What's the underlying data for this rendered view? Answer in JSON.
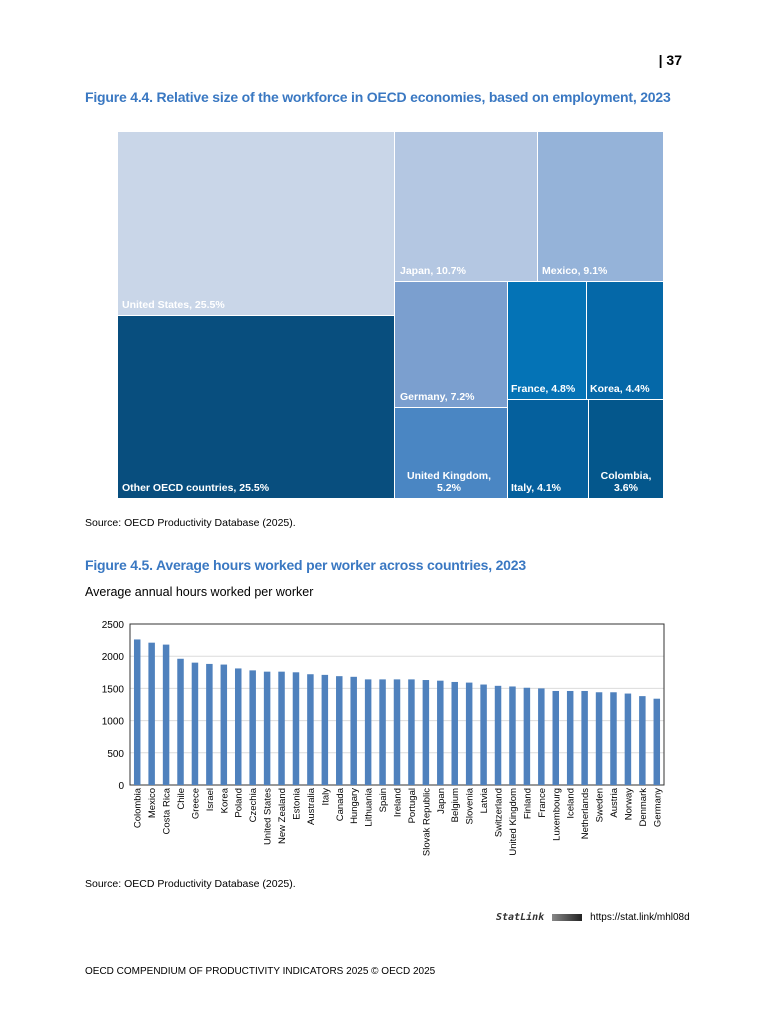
{
  "page_number": "| 37",
  "figure_4_4": {
    "title": "Figure 4.4. Relative size of the workforce in OECD economies, based on employment, 2023",
    "source": "Source: OECD Productivity Database (2025).",
    "cells": [
      {
        "label": "United States, 25.5%",
        "value": 25.5,
        "color": "#c9d6e8"
      },
      {
        "label": "Other OECD countries, 25.5%",
        "value": 25.5,
        "color": "#084e7e"
      },
      {
        "label": "Japan, 10.7%",
        "value": 10.7,
        "color": "#b4c7e2"
      },
      {
        "label": "Mexico, 9.1%",
        "value": 9.1,
        "color": "#95b3d9"
      },
      {
        "label": "Germany, 7.2%",
        "value": 7.2,
        "color": "#7b9fcf"
      },
      {
        "label": "United Kingdom, 5.2%",
        "value": 5.2,
        "color": "#4a86c3"
      },
      {
        "label": "France, 4.8%",
        "value": 4.8,
        "color": "#0473b6"
      },
      {
        "label": "Korea, 4.4%",
        "value": 4.4,
        "color": "#0568a8"
      },
      {
        "label": "Italy, 4.1%",
        "value": 4.1,
        "color": "#05609d"
      },
      {
        "label": "Colombia, 3.6%",
        "value": 3.6,
        "color": "#04578c"
      }
    ]
  },
  "figure_4_5": {
    "title": "Figure 4.5. Average hours worked per worker across countries, 2023",
    "subtitle": "Average annual hours worked per worker",
    "source": "Source: OECD Productivity Database (2025).",
    "statlink_logo": "StatLink",
    "statlink_url": "https://stat.link/mhl08d"
  },
  "chart_data": {
    "type": "bar",
    "title": "Figure 4.5. Average hours worked per worker across countries, 2023",
    "ylabel": "Average annual hours worked per worker",
    "ylim": [
      0,
      2500
    ],
    "yticks": [
      "0",
      "500",
      "1000",
      "1500",
      "2000",
      "2500"
    ],
    "grid": true,
    "color": "#4f81bd",
    "categories": [
      "Colombia",
      "Mexico",
      "Costa Rica",
      "Chile",
      "Greece",
      "Israel",
      "Korea",
      "Poland",
      "Czechia",
      "United States",
      "New Zealand",
      "Estonia",
      "Australia",
      "Italy",
      "Canada",
      "Hungary",
      "Lithuania",
      "Spain",
      "Ireland",
      "Portugal",
      "Slovak Republic",
      "Japan",
      "Belgium",
      "Slovenia",
      "Latvia",
      "Switzerland",
      "United Kingdom",
      "Finland",
      "France",
      "Luxembourg",
      "Iceland",
      "Netherlands",
      "Sweden",
      "Austria",
      "Norway",
      "Denmark",
      "Germany"
    ],
    "values": [
      2260,
      2210,
      2180,
      1960,
      1900,
      1880,
      1870,
      1810,
      1780,
      1760,
      1760,
      1750,
      1720,
      1710,
      1690,
      1680,
      1640,
      1640,
      1640,
      1640,
      1630,
      1620,
      1600,
      1590,
      1560,
      1540,
      1530,
      1510,
      1500,
      1460,
      1460,
      1460,
      1440,
      1440,
      1420,
      1380,
      1340
    ]
  },
  "footer": "OECD COMPENDIUM OF PRODUCTIVITY INDICATORS 2025 © OECD 2025"
}
